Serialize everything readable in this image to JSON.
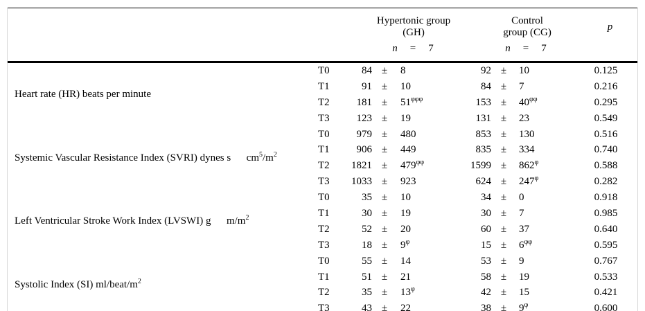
{
  "header": {
    "group1_title": "Hypertonic group (GH)",
    "group2_title": "Control group (CG)",
    "p_label": "p",
    "n_symbol": "n",
    "equals": "=",
    "n_value": "7"
  },
  "plus_minus": "±",
  "measures": [
    {
      "label_segments": [
        {
          "text": "Heart rate (HR) beats per minute"
        }
      ],
      "rows": [
        {
          "t": "T0",
          "g1": {
            "mean": "84",
            "sd": "8",
            "sup": ""
          },
          "g2": {
            "mean": "92",
            "sd": "10",
            "sup": ""
          },
          "p": "0.125"
        },
        {
          "t": "T1",
          "g1": {
            "mean": "91",
            "sd": "10",
            "sup": ""
          },
          "g2": {
            "mean": "84",
            "sd": "7",
            "sup": ""
          },
          "p": "0.216"
        },
        {
          "t": "T2",
          "g1": {
            "mean": "181",
            "sd": "51",
            "sup": "φφφ"
          },
          "g2": {
            "mean": "153",
            "sd": "40",
            "sup": "φφ"
          },
          "p": "0.295"
        },
        {
          "t": "T3",
          "g1": {
            "mean": "123",
            "sd": "19",
            "sup": ""
          },
          "g2": {
            "mean": "131",
            "sd": "23",
            "sup": ""
          },
          "p": "0.549"
        }
      ]
    },
    {
      "label_segments": [
        {
          "text": "Systemic Vascular Resistance Index (SVRI) dynes s      cm"
        },
        {
          "sup": "5"
        },
        {
          "text": "/m"
        },
        {
          "sup": "2"
        }
      ],
      "rows": [
        {
          "t": "T0",
          "g1": {
            "mean": "979",
            "sd": "480",
            "sup": ""
          },
          "g2": {
            "mean": "853",
            "sd": "130",
            "sup": ""
          },
          "p": "0.516"
        },
        {
          "t": "T1",
          "g1": {
            "mean": "906",
            "sd": "449",
            "sup": ""
          },
          "g2": {
            "mean": "835",
            "sd": "334",
            "sup": ""
          },
          "p": "0.740"
        },
        {
          "t": "T2",
          "g1": {
            "mean": "1821",
            "sd": "479",
            "sup": "φφ"
          },
          "g2": {
            "mean": "1599",
            "sd": "862",
            "sup": "φ"
          },
          "p": "0.588"
        },
        {
          "t": "T3",
          "g1": {
            "mean": "1033",
            "sd": "923",
            "sup": ""
          },
          "g2": {
            "mean": "624",
            "sd": "247",
            "sup": "φ"
          },
          "p": "0.282"
        }
      ]
    },
    {
      "label_segments": [
        {
          "text": "Left Ventricular Stroke Work Index (LVSWI) g      m/m"
        },
        {
          "sup": "2"
        }
      ],
      "rows": [
        {
          "t": "T0",
          "g1": {
            "mean": "35",
            "sd": "10",
            "sup": ""
          },
          "g2": {
            "mean": "34",
            "sd": "0",
            "sup": ""
          },
          "p": "0.918"
        },
        {
          "t": "T1",
          "g1": {
            "mean": "30",
            "sd": "19",
            "sup": ""
          },
          "g2": {
            "mean": "30",
            "sd": "7",
            "sup": ""
          },
          "p": "0.985"
        },
        {
          "t": "T2",
          "g1": {
            "mean": "52",
            "sd": "20",
            "sup": ""
          },
          "g2": {
            "mean": "60",
            "sd": "37",
            "sup": ""
          },
          "p": "0.640"
        },
        {
          "t": "T3",
          "g1": {
            "mean": "18",
            "sd": "9",
            "sup": "φ"
          },
          "g2": {
            "mean": "15",
            "sd": "6",
            "sup": "φφ"
          },
          "p": "0.595"
        }
      ]
    },
    {
      "label_segments": [
        {
          "text": "Systolic Index (SI) ml/beat/m"
        },
        {
          "sup": "2"
        }
      ],
      "rows": [
        {
          "t": "T0",
          "g1": {
            "mean": "55",
            "sd": "14",
            "sup": ""
          },
          "g2": {
            "mean": "53",
            "sd": "9",
            "sup": ""
          },
          "p": "0.767"
        },
        {
          "t": "T1",
          "g1": {
            "mean": "51",
            "sd": "21",
            "sup": ""
          },
          "g2": {
            "mean": "58",
            "sd": "19",
            "sup": ""
          },
          "p": "0.533"
        },
        {
          "t": "T2",
          "g1": {
            "mean": "35",
            "sd": "13",
            "sup": "φ"
          },
          "g2": {
            "mean": "42",
            "sd": "15",
            "sup": ""
          },
          "p": "0.421"
        },
        {
          "t": "T3",
          "g1": {
            "mean": "43",
            "sd": "22",
            "sup": ""
          },
          "g2": {
            "mean": "38",
            "sd": "9",
            "sup": "φ"
          },
          "p": "0.600"
        }
      ]
    }
  ]
}
